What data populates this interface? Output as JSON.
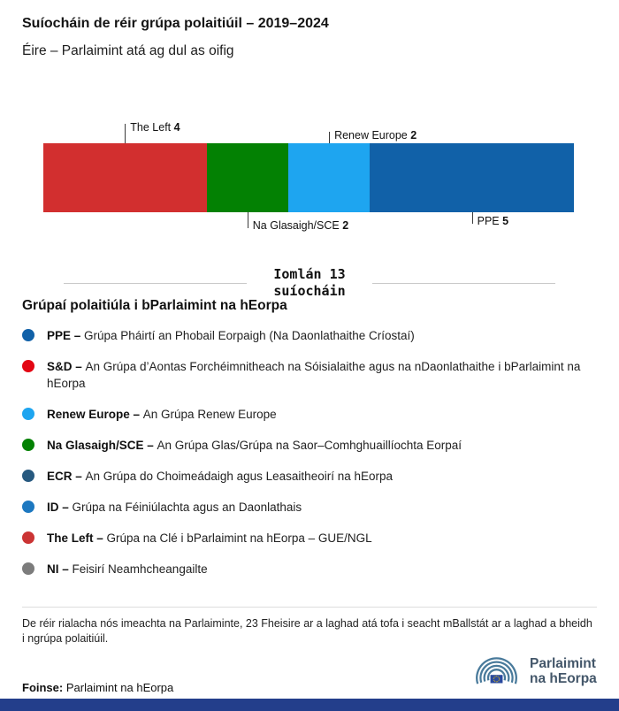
{
  "header": {
    "title": "Suíocháin de réir grúpa polaitiúil – 2019–2024",
    "subtitle": "Éire – Parlaimint atá ag dul as oifig"
  },
  "chart_data": {
    "type": "bar",
    "title": "Suíocháin de réir grúpa polaitiúil – 2019–2024",
    "subtitle": "Éire – Parlaimint atá ag dul as oifig",
    "orientation": "horizontal-stacked",
    "total": 13,
    "total_line1": "Iomlán 13",
    "total_line2": "suíocháin",
    "segments": [
      {
        "name": "The Left",
        "value": 4,
        "color": "#d22f2f",
        "label_position": "above",
        "line_length": 22
      },
      {
        "name": "Na Glasaigh/SCE",
        "value": 2,
        "color": "#038103",
        "label_position": "below",
        "line_length": 18
      },
      {
        "name": "Renew Europe",
        "value": 2,
        "color": "#1ea5f0",
        "label_position": "above",
        "line_length": 13
      },
      {
        "name": "PPE",
        "value": 5,
        "color": "#1161a8",
        "label_position": "below",
        "line_length": 13
      }
    ]
  },
  "legend": {
    "heading": "Grúpaí polaitiúla i bParlaimint na hEorpa",
    "items": [
      {
        "label": "PPE –",
        "description": "Grúpa Pháirtí an Phobail Eorpaigh (Na Daonlathaithe Críostaí)",
        "color": "#1161a8"
      },
      {
        "label": "S&D –",
        "description": "An Grúpa d’Aontas Forchéimnitheach na Sóisialaithe agus na nDaonlathaithe i bParlaimint na hEorpa",
        "color": "#e30613"
      },
      {
        "label": "Renew Europe –",
        "description": "An Grúpa Renew Europe",
        "color": "#1ea5f0"
      },
      {
        "label": "Na Glasaigh/SCE –",
        "description": "An Grúpa Glas/Grúpa na Saor–Comhghuaillíochta Eorpaí",
        "color": "#038103"
      },
      {
        "label": "ECR –",
        "description": "An Grúpa do Choimeádaigh agus Leasaitheoirí na hEorpa",
        "color": "#27597f"
      },
      {
        "label": "ID –",
        "description": "Grúpa na Féiniúlachta agus an Daonlathais",
        "color": "#1d78c0"
      },
      {
        "label": "The Left –",
        "description": "Grúpa na Clé i bParlaimint na hEorpa – GUE/NGL",
        "color": "#cb3434"
      },
      {
        "label": "NI –",
        "description": "Feisirí Neamhcheangailte",
        "color": "#7c7c7c"
      }
    ]
  },
  "footer": {
    "note": "De réir rialacha nós imeachta na Parlaiminte, 23 Fheisire ar a laghad atá tofa i seacht mBallstát ar a laghad a bheidh i ngrúpa polaitiúil.",
    "source_label": "Foinse:",
    "source_value": "Parlaimint na hEorpa",
    "logo_icon": "hemicycle-icon",
    "logo_line1": "Parlaimint",
    "logo_line2": "na hEorpa"
  },
  "colors": {
    "bottom_bar": "#233e8b",
    "logo_arcs": "#497a9b",
    "eu_flag_blue": "#2a4a9e",
    "eu_flag_stars": "#ffcf00",
    "wordmark": "#44576a"
  }
}
